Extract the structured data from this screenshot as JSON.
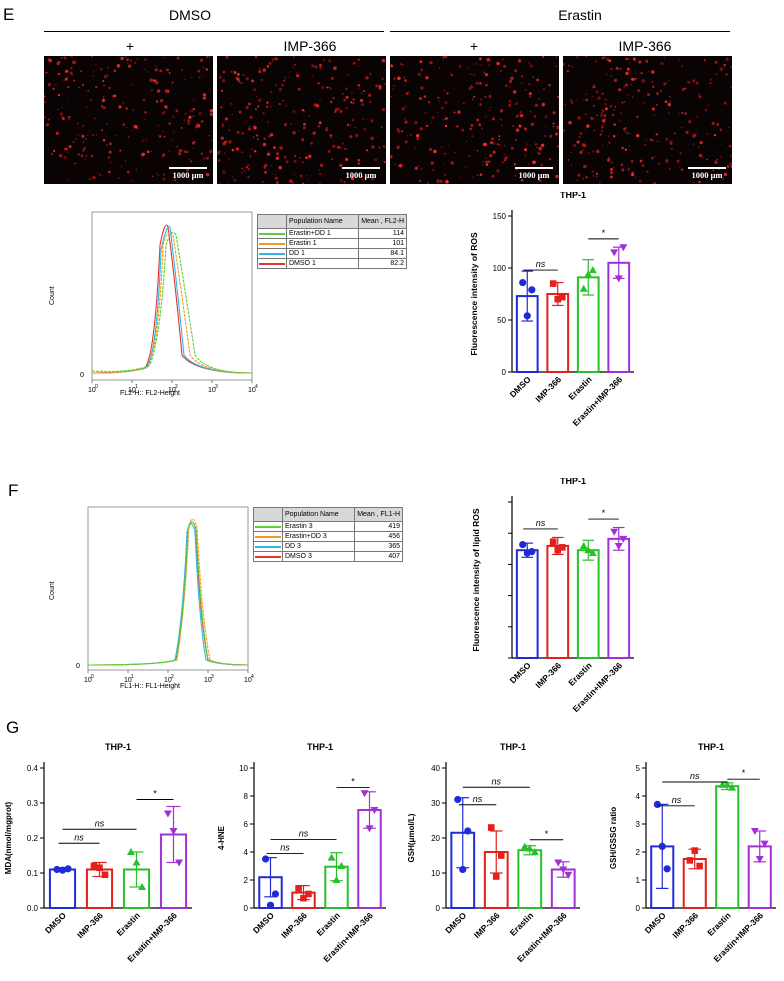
{
  "panels": {
    "E": {
      "letter": "E",
      "groups": [
        "DMSO",
        "Erastin"
      ],
      "image_labels": [
        "+",
        "IMP-366",
        "+",
        "IMP-366"
      ],
      "scale_bar": "1000 μm",
      "flow": {
        "ylabel": "Count",
        "xlabel": "FL2-H:: FL2-Height",
        "zero_label": "0",
        "x_ticks": [
          "10",
          "10",
          "10",
          "10",
          "10"
        ],
        "x_exps": [
          "0",
          "1",
          "2",
          "3",
          "4"
        ],
        "legend_header": [
          "Population Name",
          "Mean , FL2-H"
        ],
        "legend_rows": [
          {
            "name": "Erastin+DD 1",
            "mean": "114",
            "color": "#5ad13b"
          },
          {
            "name": "Erastin 1",
            "mean": "101",
            "color": "#f09a28"
          },
          {
            "name": "DD 1",
            "mean": "84.1",
            "color": "#2fb6e8"
          },
          {
            "name": "DMSO 1",
            "mean": "82.2",
            "color": "#e8322b"
          }
        ]
      }
    },
    "F": {
      "letter": "F",
      "flow": {
        "ylabel": "Count",
        "xlabel": "FL1-H:: FL1-Height",
        "zero_label": "0",
        "x_ticks": [
          "10",
          "10",
          "10",
          "10",
          "10"
        ],
        "x_exps": [
          "0",
          "1",
          "2",
          "3",
          "4"
        ],
        "legend_header": [
          "Population Name",
          "Mean , FL1-H"
        ],
        "legend_rows": [
          {
            "name": "Erastin 3",
            "mean": "419",
            "color": "#5ad13b"
          },
          {
            "name": "Erastin+DD 3",
            "mean": "456",
            "color": "#f09a28"
          },
          {
            "name": "DD 3",
            "mean": "365",
            "color": "#2fb6e8"
          },
          {
            "name": "DMSO 3",
            "mean": "407",
            "color": "#e8322b"
          }
        ]
      }
    },
    "G": {
      "letter": "G"
    }
  },
  "colors": {
    "DMSO": "#1f2bd6",
    "IMP-366": "#e3201b",
    "Erastin": "#27c12a",
    "Erastin+IMP-366": "#a12fd6"
  },
  "chart_data": [
    {
      "id": "E-ros",
      "type": "bar",
      "title": "THP-1",
      "ylabel": "Fluorescence intensity of ROS",
      "categories": [
        "DMSO",
        "IMP-366",
        "Erastin",
        "Erastin+IMP-366"
      ],
      "values": [
        73,
        75,
        91,
        105
      ],
      "errors": [
        24,
        11,
        17,
        15
      ],
      "points": [
        [
          86,
          79,
          54
        ],
        [
          85,
          72,
          70
        ],
        [
          80,
          98,
          94
        ],
        [
          115,
          120,
          90
        ]
      ],
      "ylim": [
        0,
        150
      ],
      "yticks": [
        "0",
        "50",
        "100",
        "150"
      ],
      "sig": [
        {
          "from": 0,
          "to": 1,
          "label": "ns",
          "y": 98
        },
        {
          "from": 2,
          "to": 3,
          "label": "*",
          "y": 128
        }
      ]
    },
    {
      "id": "F-lipid",
      "type": "bar",
      "title": "THP-1",
      "ylabel": "Fluorescence intensity of lipid ROS",
      "categories": [
        "DMSO",
        "IMP-366",
        "Erastin",
        "Erastin+IMP-366"
      ],
      "values": [
        380,
        395,
        380,
        420
      ],
      "errors": [
        25,
        30,
        35,
        40
      ],
      "points": [
        [
          400,
          375,
          370
        ],
        [
          410,
          390,
          380
        ],
        [
          395,
          370,
          380
        ],
        [
          445,
          420,
          395
        ]
      ],
      "ylim": [
        0,
        550
      ],
      "yticks": [],
      "sig": [
        {
          "from": 0,
          "to": 1,
          "label": "ns",
          "y": 455
        },
        {
          "from": 2,
          "to": 3,
          "label": "*",
          "y": 490
        }
      ]
    },
    {
      "id": "G-mda",
      "type": "bar",
      "title": "THP-1",
      "ylabel": "MDA(nmol/mgprot)",
      "categories": [
        "DMSO",
        "IMP-366",
        "Erastin",
        "Erastin+IMP-366"
      ],
      "values": [
        0.11,
        0.11,
        0.11,
        0.21
      ],
      "errors": [
        0.005,
        0.02,
        0.05,
        0.08
      ],
      "points": [
        [
          0.11,
          0.112,
          0.108
        ],
        [
          0.12,
          0.095,
          0.115
        ],
        [
          0.16,
          0.06,
          0.13
        ],
        [
          0.27,
          0.13,
          0.22
        ]
      ],
      "ylim": [
        0,
        0.4
      ],
      "yticks": [
        "0.0",
        "0.1",
        "0.2",
        "0.3",
        "0.4"
      ],
      "sig": [
        {
          "from": 0,
          "to": 1,
          "label": "ns",
          "y": 0.185
        },
        {
          "from": 0,
          "to": 2,
          "label": "ns",
          "y": 0.225
        },
        {
          "from": 2,
          "to": 3,
          "label": "*",
          "y": 0.31
        }
      ]
    },
    {
      "id": "G-hne",
      "type": "bar",
      "title": "THP-1",
      "ylabel": "4-HNE",
      "categories": [
        "DMSO",
        "IMP-366",
        "Erastin",
        "Erastin+IMP-366"
      ],
      "values": [
        2.2,
        1.1,
        2.95,
        7.0
      ],
      "errors": [
        1.4,
        0.5,
        1.0,
        1.3
      ],
      "points": [
        [
          3.5,
          1.0,
          0.2
        ],
        [
          1.4,
          1.0,
          0.7
        ],
        [
          3.6,
          3.0,
          2.0
        ],
        [
          8.2,
          7.0,
          5.7
        ]
      ],
      "ylim": [
        0,
        10
      ],
      "yticks": [
        "0",
        "2",
        "4",
        "6",
        "8",
        "10"
      ],
      "sig": [
        {
          "from": 0,
          "to": 1,
          "label": "ns",
          "y": 3.9
        },
        {
          "from": 0,
          "to": 2,
          "label": "ns",
          "y": 4.9
        },
        {
          "from": 2,
          "to": 3,
          "label": "*",
          "y": 8.6
        }
      ]
    },
    {
      "id": "G-gsh",
      "type": "bar",
      "title": "THP-1",
      "ylabel": "GSH(μmol/L)",
      "categories": [
        "DMSO",
        "IMP-366",
        "Erastin",
        "Erastin+IMP-366"
      ],
      "values": [
        21.5,
        16,
        16.5,
        11
      ],
      "errors": [
        10,
        6,
        1.3,
        2.2
      ],
      "points": [
        [
          31,
          22,
          11
        ],
        [
          23,
          15,
          9
        ],
        [
          17.5,
          16,
          17
        ],
        [
          13,
          9.5,
          11
        ]
      ],
      "ylim": [
        0,
        40
      ],
      "yticks": [
        "0",
        "10",
        "20",
        "30",
        "40"
      ],
      "sig": [
        {
          "from": 0,
          "to": 1,
          "label": "ns",
          "y": 29.5
        },
        {
          "from": 0,
          "to": 2,
          "label": "ns",
          "y": 34.5
        },
        {
          "from": 2,
          "to": 3,
          "label": "*",
          "y": 19.5
        }
      ]
    },
    {
      "id": "G-ratio",
      "type": "bar",
      "title": "THP-1",
      "ylabel": "GSH/GSSG ratio",
      "categories": [
        "DMSO",
        "IMP-366",
        "Erastin",
        "Erastin+IMP-366"
      ],
      "values": [
        2.2,
        1.75,
        4.35,
        2.2
      ],
      "errors": [
        1.5,
        0.35,
        0.12,
        0.55
      ],
      "points": [
        [
          3.7,
          1.4,
          2.2
        ],
        [
          1.7,
          1.5,
          2.05
        ],
        [
          4.4,
          4.3,
          4.4
        ],
        [
          2.75,
          2.3,
          1.75
        ]
      ],
      "ylim": [
        0,
        5
      ],
      "yticks": [
        "0",
        "1",
        "2",
        "3",
        "4",
        "5"
      ],
      "sig": [
        {
          "from": 0,
          "to": 1,
          "label": "ns",
          "y": 3.65
        },
        {
          "from": 0,
          "to": 2,
          "label": "ns",
          "y": 4.5
        },
        {
          "from": 2,
          "to": 3,
          "label": "*",
          "y": 4.6
        }
      ]
    }
  ]
}
